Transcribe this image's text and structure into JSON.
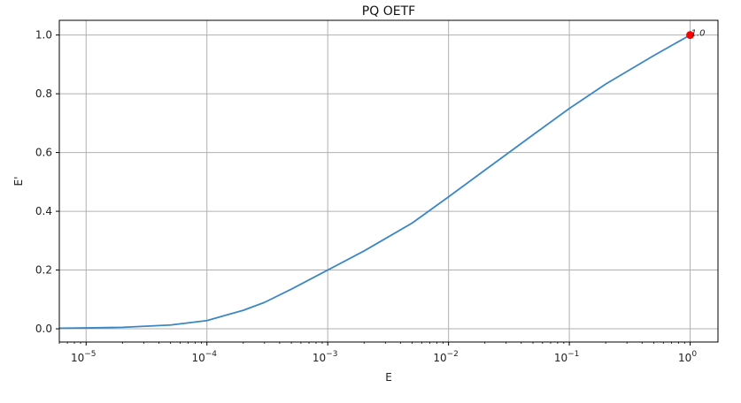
{
  "chart_data": {
    "type": "line",
    "title": "PQ OETF",
    "xlabel": "E",
    "ylabel": "E'",
    "xscale": "log",
    "xlim": [
      6e-06,
      1.7
    ],
    "ylim": [
      -0.045,
      1.05
    ],
    "grid": true,
    "x_ticks": [
      {
        "value": 1e-05,
        "base": "10",
        "exp": "−5"
      },
      {
        "value": 0.0001,
        "base": "10",
        "exp": "−4"
      },
      {
        "value": 0.001,
        "base": "10",
        "exp": "−3"
      },
      {
        "value": 0.01,
        "base": "10",
        "exp": "−2"
      },
      {
        "value": 0.1,
        "base": "10",
        "exp": "−1"
      },
      {
        "value": 1,
        "base": "10",
        "exp": "0"
      }
    ],
    "y_ticks": [
      {
        "value": 0.0,
        "label": "0.0"
      },
      {
        "value": 0.2,
        "label": "0.2"
      },
      {
        "value": 0.4,
        "label": "0.4"
      },
      {
        "value": 0.6,
        "label": "0.6"
      },
      {
        "value": 0.8,
        "label": "0.8"
      },
      {
        "value": 1.0,
        "label": "1.0"
      }
    ],
    "series": [
      {
        "color": "#3b87c4",
        "x": [
          6e-06,
          1e-05,
          2e-05,
          5e-05,
          0.0001,
          0.0002,
          0.0003,
          0.0005,
          0.001,
          0.002,
          0.005,
          0.01,
          0.02,
          0.05,
          0.1,
          0.2,
          0.5,
          1
        ],
        "y": [
          0.002,
          0.003,
          0.005,
          0.013,
          0.028,
          0.063,
          0.09,
          0.135,
          0.2,
          0.265,
          0.36,
          0.449,
          0.54,
          0.66,
          0.75,
          0.833,
          0.93,
          1.0
        ]
      }
    ],
    "highlight_point": {
      "x": 1,
      "y": 1.0,
      "label": "1.0",
      "color": "#ff0000"
    }
  }
}
